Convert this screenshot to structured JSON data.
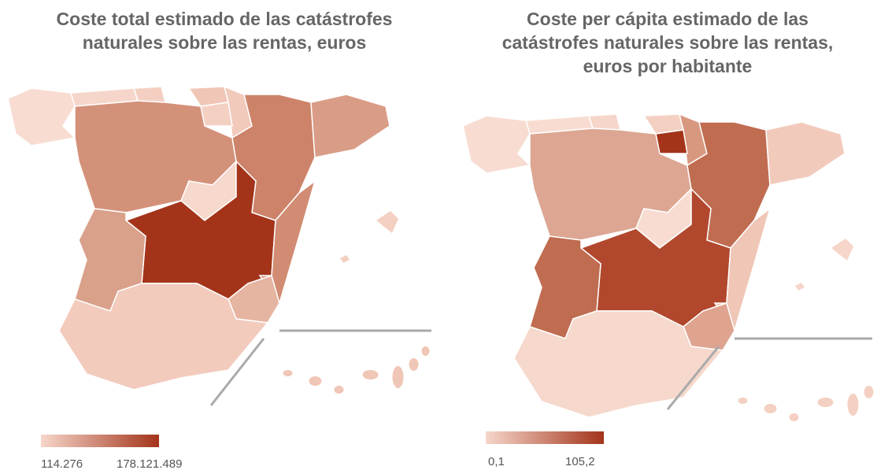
{
  "maps": [
    {
      "title": [
        "Coste total estimado de las catástrofes",
        "naturales sobre las rentas, euros"
      ],
      "legend": {
        "min_label": "114.276",
        "max_label": "178.121.489",
        "colors": [
          "#f6d6ca",
          "#a3341a"
        ]
      }
    },
    {
      "title": [
        "Coste per cápita estimado de las",
        "catástrofes naturales sobre las rentas,",
        "euros por habitante"
      ],
      "legend": {
        "min_label": "0,1",
        "max_label": "105,2",
        "colors": [
          "#f6d6ca",
          "#a3341a"
        ]
      }
    }
  ]
}
